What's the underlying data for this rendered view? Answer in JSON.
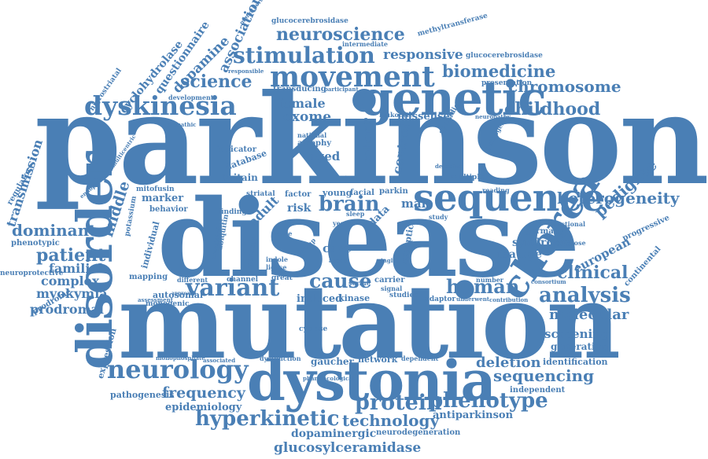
{
  "colors": {
    "word": "#4a7fb5",
    "background": "#ffffff"
  },
  "words": {
    "parkinson": "parkinson",
    "disease": "disease",
    "mutation": "mutation",
    "dystonia": "dystonia",
    "genetic": "genetic",
    "disorder": "disorder",
    "sequence": "sequence",
    "chorea": "chorea",
    "movement": "movement",
    "dyskinesia": "dyskinesia",
    "stimulation": "stimulation",
    "neuroscience": "neuroscience",
    "variant": "variant",
    "neurology": "neurology",
    "analysis": "analysis",
    "hyperkinetic": "hyperkinetic",
    "protein": "protein",
    "phenotype": "phenotype",
    "heterogeneity": "heterogeneity",
    "brain": "brain",
    "human": "human",
    "cause": "cause",
    "clinical": "clinical",
    "biomedicine": "biomedicine",
    "chromosome": "chromosome",
    "childhood": "childhood",
    "science": "science",
    "responsive": "responsive",
    "pedigree": "pedigree",
    "sequencing": "sequencing",
    "molecular": "molecular",
    "technology": "technology",
    "glucosylceramidase": "glucosylceramidase",
    "frequency": "frequency",
    "patient": "patient",
    "dominant": "dominant",
    "familial": "familial",
    "complex": "complex",
    "myokymia": "myokymia",
    "prodromal": "prodromal",
    "deletion": "deletion",
    "screening": "screening",
    "dopaminergic": "dopaminergic",
    "antiparkinson": "antiparkinson",
    "epidemiology": "epidemiology",
    "european": "european",
    "syndrome": "syndrome",
    "feature": "feature",
    "association": "association",
    "dopamine": "dopamine",
    "questionnaire": "questionnaire",
    "cyclohydrolase": "cyclohydrolase",
    "transmission": "transmission",
    "middle": "middle",
    "adult": "adult",
    "female": "female",
    "exome": "exome",
    "cohort": "cohort",
    "control": "control",
    "missense": "missense",
    "generation": "generation",
    "identification": "identification",
    "independent": "independent",
    "aged": "aged",
    "male": "male",
    "case": "case",
    "data": "data",
    "risk": "risk",
    "marker": "marker",
    "gaucher": "gaucher",
    "network": "network",
    "induced": "induced",
    "kinase": "kinase",
    "young": "young",
    "britain": "britain",
    "expression": "expression",
    "pathogenesis": "pathogenesis",
    "neurodegeneration": "neurodegeneration",
    "regulatory": "regulatory",
    "nigrostriatal": "nigrostriatal",
    "glucocerebrosidase": "glucocerebrosidase",
    "methyltransferase": "methyltransferase",
    "presentation": "presentation",
    "continental": "continental",
    "progressive": "progressive",
    "individual": "individual",
    "autosomal": "autosomal",
    "monogenic": "monogenic",
    "mapping": "mapping",
    "behavior": "behavior",
    "phenotypic": "phenotypic",
    "neuroprotective": "neuroprotective",
    "prodrome": "prodrome",
    "potassium": "potassium",
    "synaptic": "synaptic",
    "germany": "germany",
    "multiple": "multiple",
    "predispose": "predispose",
    "functional": "functional",
    "leukocyte": "leukocyte",
    "transducing": "transducing",
    "development": "development",
    "intermediate": "intermediate",
    "sporadic": "sporadic",
    "neuropathy": "neuropathy",
    "pathogenic": "pathogenic",
    "atrophy": "atrophy",
    "national": "national",
    "indicator": "indicator",
    "database": "database",
    "mitofusin": "mitofusin",
    "facial": "facial",
    "parkin": "parkin",
    "factor": "factor",
    "striatal": "striatal",
    "finding": "finding",
    "reading": "reading",
    "sleep": "sleep",
    "study": "study",
    "channel": "channel",
    "different": "different",
    "great": "great",
    "serine": "serine",
    "carrier": "carrier",
    "number": "number",
    "adaptor": "adaptor",
    "studies": "studies",
    "signal": "signal",
    "cyclase": "cyclase",
    "consortium": "consortium",
    "ligase": "ligase",
    "indole": "indole",
    "genome": "genome",
    "ubiquitin": "ubiquitin",
    "endoplasmic": "endoplasmic",
    "multicentric": "multicentric",
    "responsible": "responsible",
    "participant": "participant",
    "dysfunction": "dysfunction",
    "pharmacological": "pharmacological",
    "dependent": "dependent",
    "contribution": "contribution",
    "assessment": "assessment",
    "monophosphate": "monophosphate",
    "associated": "associated",
    "monotherapy": "monotherapy",
    "idiopathic": "idiopathic",
    "year": "year",
    "defective": "defective",
    "underwent": "underwent",
    "agent": "agent",
    "group": "group",
    "frame": "frame",
    "single": "single",
    "translated": "translated",
    "approach": "approach"
  }
}
